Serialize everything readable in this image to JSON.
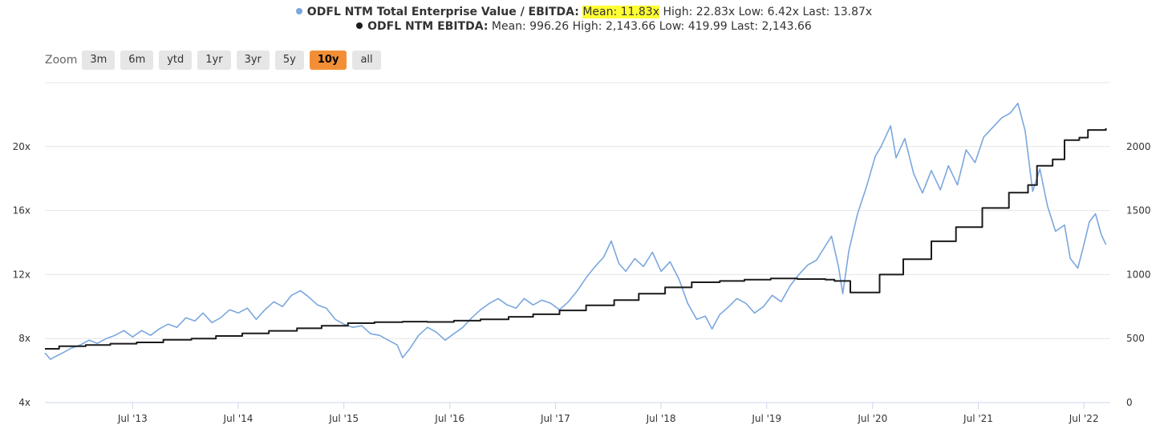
{
  "legend": {
    "series1": {
      "name": "ODFL NTM Total Enterprise Value / EBITDA:",
      "mean": "Mean: 11.83x",
      "rest": " High: 22.83x Low: 6.42x Last: 13.87x"
    },
    "series2": {
      "name": "ODFL NTM EBITDA:",
      "rest": " Mean: 996.26 High: 2,143.66 Low: 419.99 Last: 2,143.66"
    }
  },
  "zoom": {
    "label": "Zoom",
    "buttons": [
      "3m",
      "6m",
      "ytd",
      "1yr",
      "3yr",
      "5y",
      "10y",
      "all"
    ],
    "active": "10y"
  },
  "colors": {
    "series1": "#7aa7de",
    "series2": "#1b1b1b",
    "highlight": "#ffff33",
    "zoom_active": "#f28f36",
    "grid": "#e6e6e6"
  },
  "chart_data": {
    "type": "line",
    "x_ticks": [
      "Jul '13",
      "Jul '14",
      "Jul '15",
      "Jul '16",
      "Jul '17",
      "Jul '18",
      "Jul '19",
      "Jul '20",
      "Jul '21",
      "Jul '22"
    ],
    "y_left_ticks": [
      "4x",
      "8x",
      "12x",
      "16x",
      "20x"
    ],
    "y_right_ticks": [
      "0",
      "500",
      "1000",
      "1500",
      "2000"
    ],
    "y_left_range": [
      4,
      24
    ],
    "y_right_range": [
      0,
      2500
    ],
    "x_range": [
      "2012-09",
      "2022-09"
    ],
    "series": [
      {
        "name": "ODFL NTM Total Enterprise Value / EBITDA",
        "axis": "left",
        "points": [
          [
            "2012-09-01",
            7.1
          ],
          [
            "2012-09-20",
            6.7
          ],
          [
            "2012-10-10",
            6.9
          ],
          [
            "2012-11-01",
            7.1
          ],
          [
            "2012-12-01",
            7.4
          ],
          [
            "2013-01-01",
            7.6
          ],
          [
            "2013-02-01",
            7.9
          ],
          [
            "2013-03-01",
            7.7
          ],
          [
            "2013-04-01",
            8.0
          ],
          [
            "2013-05-01",
            8.2
          ],
          [
            "2013-06-01",
            8.5
          ],
          [
            "2013-07-01",
            8.1
          ],
          [
            "2013-08-01",
            8.5
          ],
          [
            "2013-09-01",
            8.2
          ],
          [
            "2013-10-01",
            8.6
          ],
          [
            "2013-11-01",
            8.9
          ],
          [
            "2013-12-01",
            8.7
          ],
          [
            "2014-01-01",
            9.3
          ],
          [
            "2014-02-01",
            9.1
          ],
          [
            "2014-03-01",
            9.6
          ],
          [
            "2014-04-01",
            9.0
          ],
          [
            "2014-05-01",
            9.3
          ],
          [
            "2014-06-01",
            9.8
          ],
          [
            "2014-07-01",
            9.6
          ],
          [
            "2014-08-01",
            9.9
          ],
          [
            "2014-09-01",
            9.2
          ],
          [
            "2014-10-01",
            9.8
          ],
          [
            "2014-11-01",
            10.3
          ],
          [
            "2014-12-01",
            10.0
          ],
          [
            "2015-01-01",
            10.7
          ],
          [
            "2015-02-01",
            11.0
          ],
          [
            "2015-03-01",
            10.6
          ],
          [
            "2015-04-01",
            10.1
          ],
          [
            "2015-05-01",
            9.9
          ],
          [
            "2015-06-01",
            9.2
          ],
          [
            "2015-07-01",
            8.9
          ],
          [
            "2015-08-01",
            8.7
          ],
          [
            "2015-09-01",
            8.8
          ],
          [
            "2015-10-01",
            8.3
          ],
          [
            "2015-11-01",
            8.2
          ],
          [
            "2015-12-01",
            7.9
          ],
          [
            "2016-01-01",
            7.6
          ],
          [
            "2016-01-20",
            6.8
          ],
          [
            "2016-02-15",
            7.4
          ],
          [
            "2016-03-15",
            8.2
          ],
          [
            "2016-04-15",
            8.7
          ],
          [
            "2016-05-15",
            8.4
          ],
          [
            "2016-06-15",
            7.9
          ],
          [
            "2016-07-15",
            8.3
          ],
          [
            "2016-08-15",
            8.7
          ],
          [
            "2016-09-15",
            9.3
          ],
          [
            "2016-10-15",
            9.8
          ],
          [
            "2016-11-15",
            10.2
          ],
          [
            "2016-12-15",
            10.5
          ],
          [
            "2017-01-15",
            10.1
          ],
          [
            "2017-02-15",
            9.9
          ],
          [
            "2017-03-15",
            10.5
          ],
          [
            "2017-04-15",
            10.1
          ],
          [
            "2017-05-15",
            10.4
          ],
          [
            "2017-06-15",
            10.2
          ],
          [
            "2017-07-15",
            9.8
          ],
          [
            "2017-08-15",
            10.3
          ],
          [
            "2017-09-15",
            11.0
          ],
          [
            "2017-10-15",
            11.8
          ],
          [
            "2017-11-15",
            12.5
          ],
          [
            "2017-12-15",
            13.1
          ],
          [
            "2018-01-10",
            14.1
          ],
          [
            "2018-02-05",
            12.7
          ],
          [
            "2018-03-01",
            12.2
          ],
          [
            "2018-04-01",
            13.0
          ],
          [
            "2018-05-01",
            12.5
          ],
          [
            "2018-06-01",
            13.4
          ],
          [
            "2018-07-01",
            12.2
          ],
          [
            "2018-08-01",
            12.8
          ],
          [
            "2018-09-01",
            11.7
          ],
          [
            "2018-10-01",
            10.2
          ],
          [
            "2018-11-01",
            9.2
          ],
          [
            "2018-12-01",
            9.4
          ],
          [
            "2018-12-24",
            8.6
          ],
          [
            "2019-01-20",
            9.5
          ],
          [
            "2019-02-20",
            10.0
          ],
          [
            "2019-03-20",
            10.5
          ],
          [
            "2019-04-20",
            10.2
          ],
          [
            "2019-05-20",
            9.6
          ],
          [
            "2019-06-20",
            10.0
          ],
          [
            "2019-07-20",
            10.7
          ],
          [
            "2019-08-20",
            10.3
          ],
          [
            "2019-09-20",
            11.3
          ],
          [
            "2019-10-20",
            12.0
          ],
          [
            "2019-11-20",
            12.6
          ],
          [
            "2019-12-20",
            12.9
          ],
          [
            "2020-01-20",
            13.8
          ],
          [
            "2020-02-10",
            14.4
          ],
          [
            "2020-03-05",
            12.5
          ],
          [
            "2020-03-20",
            10.8
          ],
          [
            "2020-04-10",
            13.5
          ],
          [
            "2020-05-10",
            15.8
          ],
          [
            "2020-06-10",
            17.5
          ],
          [
            "2020-07-10",
            19.4
          ],
          [
            "2020-07-30",
            20.0
          ],
          [
            "2020-09-01",
            21.3
          ],
          [
            "2020-09-20",
            19.3
          ],
          [
            "2020-10-20",
            20.5
          ],
          [
            "2020-11-20",
            18.3
          ],
          [
            "2020-12-20",
            17.1
          ],
          [
            "2021-01-20",
            18.5
          ],
          [
            "2021-02-20",
            17.3
          ],
          [
            "2021-03-20",
            18.8
          ],
          [
            "2021-04-20",
            17.6
          ],
          [
            "2021-05-20",
            19.8
          ],
          [
            "2021-06-20",
            19.0
          ],
          [
            "2021-07-20",
            20.6
          ],
          [
            "2021-08-20",
            21.2
          ],
          [
            "2021-09-20",
            21.8
          ],
          [
            "2021-10-20",
            22.1
          ],
          [
            "2021-11-15",
            22.7
          ],
          [
            "2021-12-10",
            21.0
          ],
          [
            "2022-01-05",
            17.2
          ],
          [
            "2022-01-30",
            18.6
          ],
          [
            "2022-02-25",
            16.3
          ],
          [
            "2022-03-25",
            14.7
          ],
          [
            "2022-04-25",
            15.1
          ],
          [
            "2022-05-15",
            13.0
          ],
          [
            "2022-06-10",
            12.4
          ],
          [
            "2022-06-30",
            13.8
          ],
          [
            "2022-07-20",
            15.3
          ],
          [
            "2022-08-10",
            15.8
          ],
          [
            "2022-08-30",
            14.5
          ],
          [
            "2022-09-15",
            13.87
          ]
        ]
      },
      {
        "name": "ODFL NTM EBITDA",
        "axis": "right",
        "points": [
          [
            "2012-09-01",
            420
          ],
          [
            "2012-10-10",
            420
          ],
          [
            "2012-10-20",
            440
          ],
          [
            "2013-01-20",
            450
          ],
          [
            "2013-04-15",
            460
          ],
          [
            "2013-07-15",
            470
          ],
          [
            "2013-10-15",
            490
          ],
          [
            "2014-01-20",
            500
          ],
          [
            "2014-04-15",
            520
          ],
          [
            "2014-07-15",
            540
          ],
          [
            "2014-10-15",
            560
          ],
          [
            "2015-01-20",
            580
          ],
          [
            "2015-04-15",
            600
          ],
          [
            "2015-07-15",
            620
          ],
          [
            "2015-10-15",
            628
          ],
          [
            "2016-01-20",
            632
          ],
          [
            "2016-04-15",
            630
          ],
          [
            "2016-07-15",
            640
          ],
          [
            "2016-10-15",
            650
          ],
          [
            "2017-01-20",
            670
          ],
          [
            "2017-04-15",
            690
          ],
          [
            "2017-07-15",
            720
          ],
          [
            "2017-10-15",
            760
          ],
          [
            "2018-01-20",
            800
          ],
          [
            "2018-04-15",
            850
          ],
          [
            "2018-07-15",
            900
          ],
          [
            "2018-10-15",
            940
          ],
          [
            "2019-01-20",
            950
          ],
          [
            "2019-04-15",
            960
          ],
          [
            "2019-07-15",
            970
          ],
          [
            "2019-10-15",
            965
          ],
          [
            "2020-01-20",
            960
          ],
          [
            "2020-02-20",
            950
          ],
          [
            "2020-04-15",
            860
          ],
          [
            "2020-06-15",
            860
          ],
          [
            "2020-07-25",
            1000
          ],
          [
            "2020-10-15",
            1120
          ],
          [
            "2021-01-20",
            1260
          ],
          [
            "2021-04-15",
            1370
          ],
          [
            "2021-07-15",
            1520
          ],
          [
            "2021-10-15",
            1640
          ],
          [
            "2021-12-20",
            1700
          ],
          [
            "2022-01-20",
            1850
          ],
          [
            "2022-03-15",
            1900
          ],
          [
            "2022-04-25",
            2050
          ],
          [
            "2022-06-15",
            2070
          ],
          [
            "2022-07-15",
            2130
          ],
          [
            "2022-09-15",
            2143.66
          ]
        ]
      }
    ]
  }
}
